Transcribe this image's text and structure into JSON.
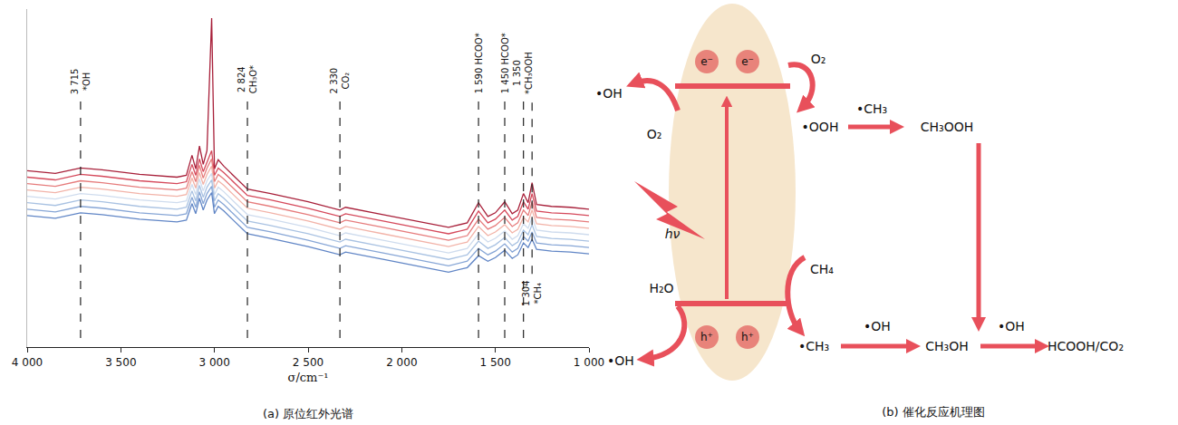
{
  "chart_data": {
    "type": "line",
    "title": "(a) 原位红外光谱",
    "x_label": "σ/cm⁻¹",
    "x": [
      4000,
      3850,
      3715,
      3600,
      3400,
      3200,
      3150,
      3120,
      3100,
      3080,
      3060,
      3040,
      3015,
      3000,
      2980,
      2950,
      2900,
      2824,
      2700,
      2500,
      2330,
      2300,
      2100,
      1900,
      1750,
      1650,
      1590,
      1540,
      1500,
      1450,
      1410,
      1380,
      1350,
      1325,
      1304,
      1280,
      1200,
      1100,
      1000
    ],
    "series": [
      {
        "color": "#a8203a",
        "values": [
          19.3,
          19.0,
          19.6,
          19.4,
          18.9,
          18.6,
          18.8,
          21.0,
          19.5,
          22.0,
          20.0,
          21.5,
          36.0,
          19.5,
          20.5,
          19.8,
          18.8,
          17.3,
          16.8,
          15.9,
          15.0,
          15.3,
          14.5,
          13.7,
          13.1,
          13.6,
          15.8,
          14.3,
          14.7,
          15.9,
          14.6,
          15.0,
          16.8,
          15.8,
          18.0,
          15.6,
          15.4,
          15.3,
          15.1
        ]
      },
      {
        "color": "#d5495b",
        "values": [
          18.6,
          18.3,
          18.9,
          18.7,
          18.2,
          17.9,
          18.1,
          20.0,
          18.8,
          20.6,
          19.2,
          20.3,
          21.5,
          18.8,
          19.6,
          19.1,
          18.1,
          16.6,
          16.1,
          15.2,
          14.3,
          14.6,
          13.8,
          13.0,
          12.4,
          12.9,
          14.9,
          13.6,
          14.0,
          15.0,
          13.9,
          14.3,
          15.9,
          15.1,
          16.8,
          14.9,
          14.7,
          14.6,
          14.4
        ]
      },
      {
        "color": "#e67c7c",
        "values": [
          17.9,
          17.6,
          18.2,
          18.0,
          17.5,
          17.2,
          17.4,
          19.2,
          18.1,
          19.9,
          18.5,
          19.6,
          20.6,
          18.1,
          18.9,
          18.4,
          17.4,
          15.9,
          15.4,
          14.5,
          13.6,
          13.9,
          13.1,
          12.3,
          11.7,
          12.2,
          14.0,
          12.9,
          13.3,
          14.2,
          13.2,
          13.6,
          15.0,
          14.4,
          15.9,
          14.2,
          14.0,
          13.9,
          13.7
        ]
      },
      {
        "color": "#f2b3a8",
        "values": [
          17.2,
          16.9,
          17.5,
          17.3,
          16.8,
          16.5,
          16.7,
          18.5,
          17.4,
          19.1,
          17.8,
          18.9,
          19.8,
          17.4,
          18.2,
          17.7,
          16.7,
          15.2,
          14.7,
          13.8,
          12.9,
          13.2,
          12.4,
          11.6,
          11.0,
          11.5,
          13.2,
          12.2,
          12.6,
          13.4,
          12.5,
          12.9,
          14.2,
          13.7,
          15.0,
          13.5,
          13.3,
          13.2,
          13.0
        ]
      },
      {
        "color": "#cfdcee",
        "values": [
          16.5,
          16.2,
          16.8,
          16.6,
          16.1,
          15.8,
          16.0,
          17.8,
          16.7,
          18.4,
          17.1,
          18.2,
          19.0,
          16.7,
          17.5,
          17.0,
          16.0,
          14.5,
          14.0,
          13.1,
          12.2,
          12.5,
          11.7,
          10.9,
          10.3,
          10.8,
          12.4,
          11.5,
          11.9,
          12.7,
          11.8,
          12.2,
          13.5,
          13.0,
          14.2,
          12.8,
          12.6,
          12.5,
          12.3
        ]
      },
      {
        "color": "#a9c2e2",
        "values": [
          15.8,
          15.5,
          16.1,
          15.9,
          15.4,
          15.1,
          15.3,
          17.1,
          16.0,
          17.7,
          16.4,
          17.5,
          18.3,
          16.0,
          16.8,
          16.3,
          15.3,
          13.8,
          13.3,
          12.4,
          11.5,
          11.8,
          11.0,
          10.2,
          9.6,
          10.1,
          11.6,
          10.8,
          11.2,
          12.0,
          11.1,
          11.5,
          12.8,
          12.3,
          13.4,
          12.1,
          11.9,
          11.8,
          11.6
        ]
      },
      {
        "color": "#87a6d6",
        "values": [
          15.1,
          14.8,
          15.4,
          15.2,
          14.7,
          14.4,
          14.6,
          16.4,
          15.3,
          17.0,
          15.7,
          16.8,
          17.6,
          15.3,
          16.1,
          15.6,
          14.6,
          13.1,
          12.6,
          11.7,
          10.8,
          11.1,
          10.3,
          9.5,
          8.9,
          9.4,
          10.8,
          10.1,
          10.5,
          11.3,
          10.4,
          10.8,
          12.1,
          11.6,
          12.6,
          11.4,
          11.2,
          11.1,
          10.9
        ]
      },
      {
        "color": "#6186c6",
        "values": [
          14.4,
          14.1,
          14.7,
          14.5,
          14.0,
          13.7,
          13.9,
          15.7,
          14.6,
          16.3,
          15.0,
          16.1,
          16.9,
          14.6,
          15.4,
          14.9,
          13.9,
          12.4,
          11.9,
          11.0,
          10.1,
          10.4,
          9.6,
          8.8,
          8.2,
          8.7,
          10.0,
          9.4,
          9.8,
          10.6,
          9.7,
          10.1,
          11.4,
          10.9,
          11.8,
          10.7,
          10.5,
          10.4,
          10.2
        ]
      }
    ],
    "xlim": [
      4000,
      1000
    ],
    "xticks": [
      {
        "value": 4000,
        "label": "4 000"
      },
      {
        "value": 3500,
        "label": "3 500"
      },
      {
        "value": 3000,
        "label": "3 000"
      },
      {
        "value": 2500,
        "label": "2 500"
      },
      {
        "value": 2000,
        "label": "2 000"
      },
      {
        "value": 1500,
        "label": "1 500"
      },
      {
        "value": 1000,
        "label": "1 000"
      }
    ],
    "ylim": [
      0,
      37
    ],
    "tick_labels": "x",
    "grid": false,
    "line_style": "solid",
    "annotations": [
      {
        "x": 3715,
        "label": "3 715",
        "text": "*OH"
      },
      {
        "x": 2824,
        "label": "2 824",
        "text": "CH₃O*"
      },
      {
        "x": 2330,
        "label": "2 330",
        "text": "CO₂"
      },
      {
        "x": 1590,
        "label": "1 590",
        "text": "HCOO*"
      },
      {
        "x": 1450,
        "label": "1 450",
        "text": "HCOO*"
      },
      {
        "x": 1350,
        "label": "1 350",
        "text": "*CH₃OOH"
      },
      {
        "x": 1304,
        "label": "1 304",
        "text": "*CH₄"
      }
    ]
  },
  "diagram": {
    "caption": "(b) 催化反应机理图",
    "band": {
      "electron": "e⁻",
      "hole": "h⁺",
      "light": "hν"
    },
    "left": {
      "top_in": "O₂",
      "top_out": "•OH",
      "bottom_in": "H₂O",
      "bottom_out": "•OH"
    },
    "reduction": {
      "reactant": "O₂",
      "intermediate": "•OOH",
      "reagent": "•CH₃",
      "product": "CH₃OOH"
    },
    "oxidation": {
      "reactant": "CH₄",
      "radical": "•CH₃",
      "step1_reagent": "•OH",
      "step1_product": "CH₃OH",
      "step2_reagent": "•OH",
      "step2_product": "HCOOH/CO₂"
    }
  }
}
